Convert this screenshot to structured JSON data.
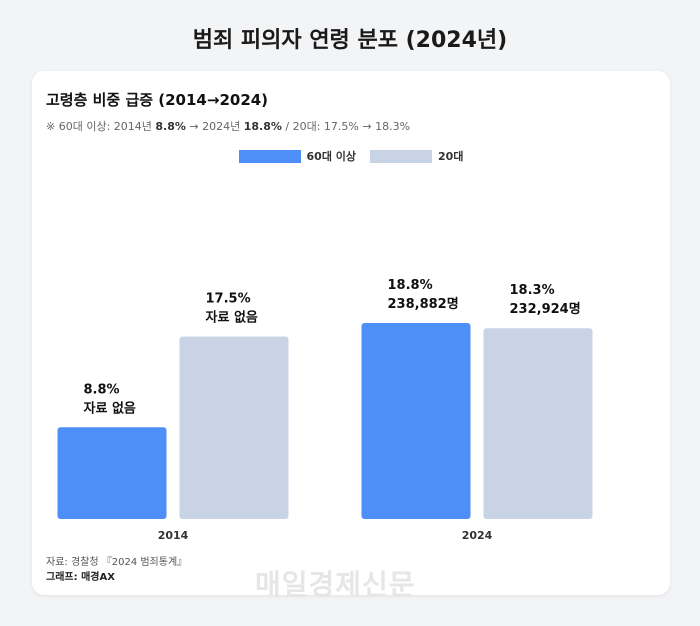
{
  "title": "범죄 피의자 연령 분포 (2024년)",
  "subtitle": "고령층 비중 급증 (2014→2024)",
  "note": {
    "prefix": "※ 60대 이상: 2014년 ",
    "v1": "8.8%",
    "mid": " → 2024년 ",
    "v2": "18.8%",
    "suffix": " / 20대: 17.5% → 18.3%"
  },
  "source": "자료: 경찰청 『2024 범죄통계』",
  "credit": "그래프: 매경AX",
  "watermark": "매일경제신문",
  "colors": {
    "senior": "#4e8ef7",
    "twenties": "#c8d3e5"
  },
  "chart_data": {
    "type": "bar",
    "categories": [
      "2014",
      "2024"
    ],
    "ylim": [
      0,
      20
    ],
    "series": [
      {
        "name": "60대 이상",
        "values": [
          8.8,
          18.8
        ],
        "labels": [
          "8.8%",
          "18.8%"
        ],
        "sublabels": [
          "자료 없음",
          "238,882명"
        ]
      },
      {
        "name": "20대",
        "values": [
          17.5,
          18.3
        ],
        "labels": [
          "17.5%",
          "18.3%"
        ],
        "sublabels": [
          "자료 없음",
          "232,924명"
        ]
      }
    ],
    "legend": "top-center",
    "grid": false
  }
}
